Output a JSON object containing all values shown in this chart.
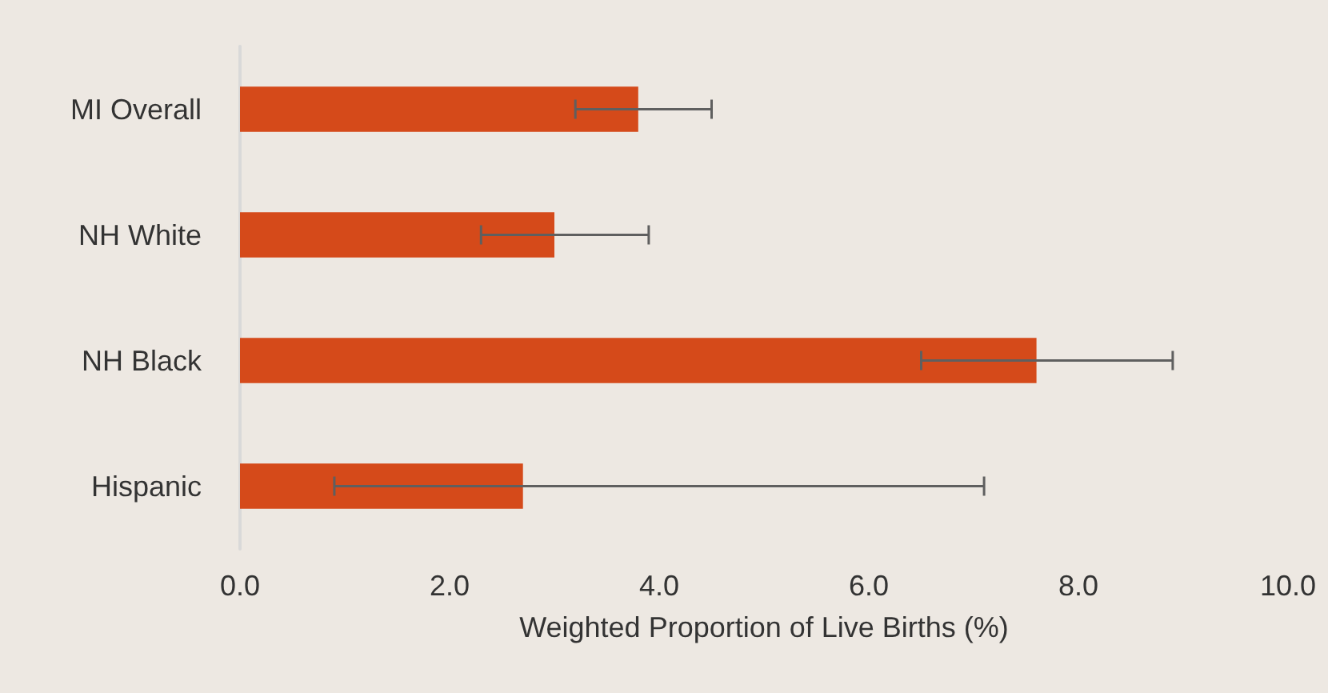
{
  "chart_data": {
    "type": "bar",
    "orientation": "horizontal",
    "xlabel": "Weighted Proportion of Live Births (%)",
    "categories": [
      "MI Overall",
      "NH White",
      "NH Black",
      "Hispanic"
    ],
    "values": [
      3.8,
      3.0,
      7.6,
      2.7
    ],
    "errors": [
      [
        3.2,
        4.5
      ],
      [
        2.3,
        3.9
      ],
      [
        6.5,
        8.9
      ],
      [
        0.9,
        7.1
      ]
    ],
    "color": "#d54a1a",
    "xlim": [
      0,
      10
    ],
    "xticks": [
      {
        "value": 0,
        "label": "0.0"
      },
      {
        "value": 2,
        "label": "2.0"
      },
      {
        "value": 4,
        "label": "4.0"
      },
      {
        "value": 6,
        "label": "6.0"
      },
      {
        "value": 8,
        "label": "8.0"
      },
      {
        "value": 10,
        "label": "10.0"
      }
    ],
    "grid": false
  }
}
